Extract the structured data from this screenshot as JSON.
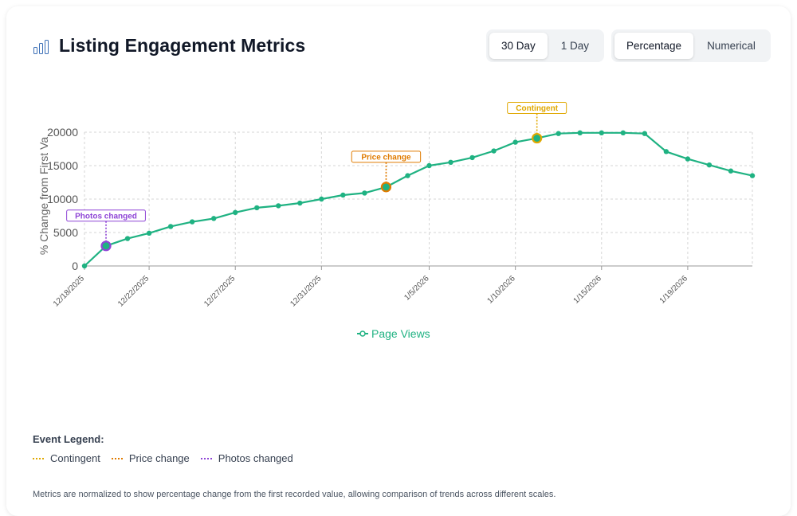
{
  "header": {
    "title": "Listing Engagement Metrics",
    "icon": "bar-chart-icon",
    "range_buttons": [
      {
        "label": "30 Day",
        "active": true
      },
      {
        "label": "1 Day",
        "active": false
      }
    ],
    "mode_buttons": [
      {
        "label": "Percentage",
        "active": true
      },
      {
        "label": "Numerical",
        "active": false
      }
    ]
  },
  "colors": {
    "line": "#1fb282",
    "contingent": "#e0a800",
    "price_change": "#e07b00",
    "photos_changed": "#8e44d6",
    "grid": "#d6d6d6"
  },
  "chart_data": {
    "type": "line",
    "title": "",
    "ylabel": "% Change from First Va",
    "xlabel": "",
    "ylim": [
      0,
      20000
    ],
    "yticks": [
      0,
      5000,
      10000,
      15000,
      20000
    ],
    "ytick_labels": [
      "0",
      "5000",
      "10000",
      "15000",
      "20000"
    ],
    "xtick_labels": [
      "12/18/2025",
      "12/22/2025",
      "12/27/2025",
      "12/31/2025",
      "1/5/2026",
      "1/10/2026",
      "1/15/2026",
      "1/19/2026"
    ],
    "xtick_index": [
      0,
      3,
      7,
      11,
      16,
      20,
      24,
      28
    ],
    "grid": true,
    "legend_position": "bottom-center",
    "series": [
      {
        "name": "Page Views",
        "values": [
          0,
          3000,
          4100,
          4900,
          5900,
          6600,
          7100,
          8000,
          8700,
          9000,
          9400,
          10000,
          10600,
          10900,
          11800,
          13500,
          15000,
          15500,
          16200,
          17200,
          18500,
          19100,
          19800,
          19900,
          19900,
          19900,
          19800,
          17100,
          16000,
          15100,
          14200,
          13500
        ]
      }
    ],
    "annotations": [
      {
        "label": "Photos changed",
        "index": 1,
        "value": 3000,
        "event": "photos_changed"
      },
      {
        "label": "Price change",
        "index": 14,
        "value": 11800,
        "event": "price_change"
      },
      {
        "label": "Contingent",
        "index": 21,
        "value": 19100,
        "event": "contingent"
      }
    ]
  },
  "event_legend": {
    "title": "Event Legend:",
    "items": [
      {
        "label": "Contingent",
        "event": "contingent"
      },
      {
        "label": "Price change",
        "event": "price_change"
      },
      {
        "label": "Photos changed",
        "event": "photos_changed"
      }
    ]
  },
  "footnote": "Metrics are normalized to show percentage change from the first recorded value, allowing comparison of trends across different scales."
}
